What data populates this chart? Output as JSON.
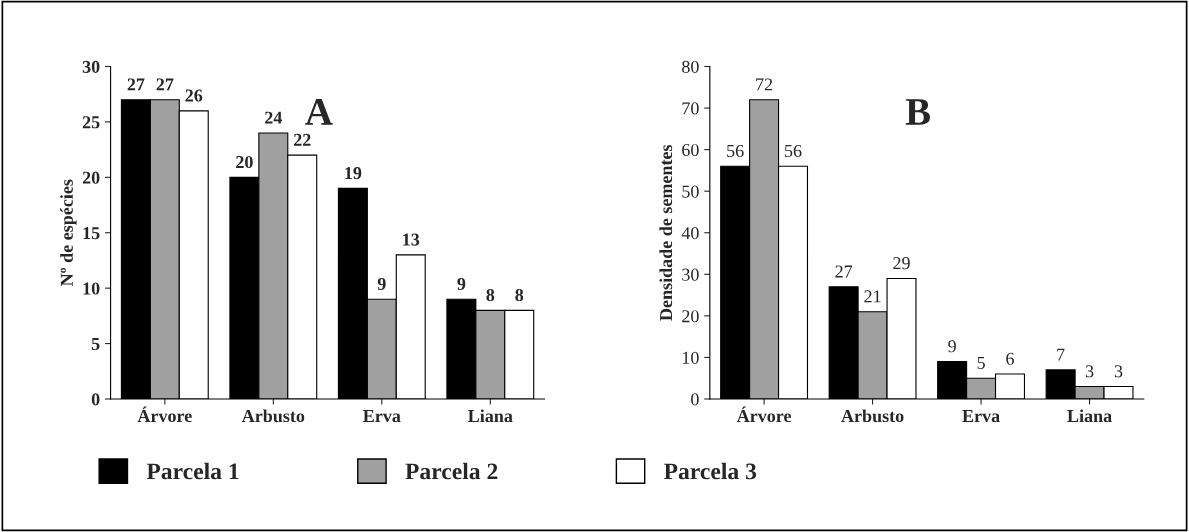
{
  "chart_data": [
    {
      "type": "bar",
      "title": "A",
      "ylabel": "Nº de espécies",
      "categories": [
        "Árvore",
        "Arbusto",
        "Erva",
        "Liana"
      ],
      "series": [
        {
          "name": "Parcela 1",
          "color": "#000000",
          "values": [
            27,
            20,
            19,
            9
          ]
        },
        {
          "name": "Parcela 2",
          "color": "#a0a0a0",
          "values": [
            27,
            24,
            9,
            8
          ]
        },
        {
          "name": "Parcela 3",
          "color": "#ffffff",
          "values": [
            26,
            22,
            13,
            8
          ]
        }
      ],
      "ylim": [
        0,
        30
      ],
      "yticks": [
        0,
        5,
        10,
        15,
        20,
        25,
        30
      ],
      "data_labels": true,
      "grid": false,
      "legend": "bottom"
    },
    {
      "type": "bar",
      "title": "B",
      "ylabel": "Densidade de sementes",
      "categories": [
        "Árvore",
        "Arbusto",
        "Erva",
        "Liana"
      ],
      "series": [
        {
          "color": "#000000",
          "values": [
            56,
            27,
            9,
            7
          ]
        },
        {
          "color": "#a0a0a0",
          "values": [
            72,
            21,
            5,
            3
          ]
        },
        {
          "color": "#ffffff",
          "values": [
            56,
            29,
            6,
            3
          ]
        }
      ],
      "ylim": [
        0,
        80
      ],
      "yticks": [
        0,
        10,
        20,
        30,
        40,
        50,
        60,
        70,
        80
      ],
      "data_labels": true,
      "grid": false
    }
  ]
}
